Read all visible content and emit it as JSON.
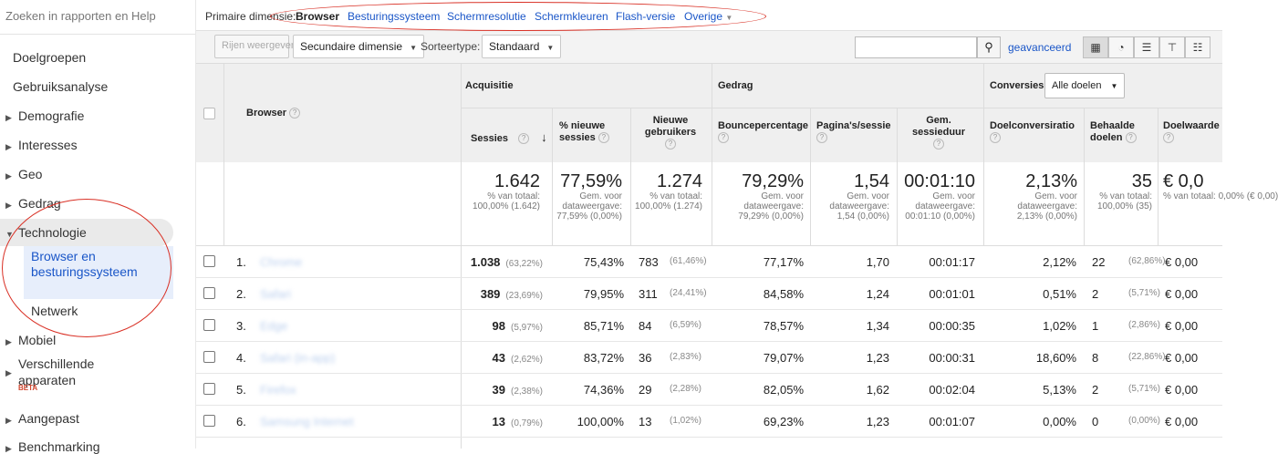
{
  "sidebar": {
    "search_placeholder": "Zoeken in rapporten en Help",
    "items": [
      {
        "label": "Doelgroepen"
      },
      {
        "label": "Gebruiksanalyse"
      },
      {
        "label": "Demografie"
      },
      {
        "label": "Interesses"
      },
      {
        "label": "Geo"
      },
      {
        "label": "Gedrag"
      },
      {
        "label": "Technologie"
      },
      {
        "label": "Browser en besturingssysteem"
      },
      {
        "label": "Netwerk"
      },
      {
        "label": "Mobiel"
      },
      {
        "label": "Verschillende apparaten"
      },
      {
        "label": "Aangepast"
      },
      {
        "label": "Benchmarking"
      }
    ],
    "beta": "BETA"
  },
  "dimbar": {
    "label": "Primaire dimensie:",
    "dims": [
      "Browser",
      "Besturingssysteem",
      "Schermresolutie",
      "Schermkleuren",
      "Flash-versie",
      "Overige"
    ]
  },
  "toolbar": {
    "rows_btn": "Rijen weergeven",
    "secondary_dim": "Secundaire dimensie",
    "sort_label": "Sorteertype:",
    "sort_value": "Standaard",
    "advanced": "geavanceerd"
  },
  "table": {
    "groups": {
      "acq": "Acquisitie",
      "beh": "Gedrag",
      "conv": "Conversies",
      "goals_select": "Alle doelen"
    },
    "cols": {
      "browser": "Browser",
      "sessions": "Sessies",
      "new_pct": "% nieuwe sessies",
      "new_users": "Nieuwe gebruikers",
      "bounce": "Bouncepercentage",
      "pages": "Pagina's/sessie",
      "duration": "Gem. sessieduur",
      "conv_rate": "Doelconversiratio",
      "goals": "Behaalde doelen",
      "value": "Doelwaarde"
    },
    "totals": [
      {
        "big": "1.642",
        "small": "% van totaal: 100,00% (1.642)"
      },
      {
        "big": "77,59%",
        "small": "Gem. voor dataweergave: 77,59% (0,00%)"
      },
      {
        "big": "1.274",
        "small": "% van totaal: 100,00% (1.274)"
      },
      {
        "big": "79,29%",
        "small": "Gem. voor dataweergave: 79,29% (0,00%)"
      },
      {
        "big": "1,54",
        "small": "Gem. voor dataweergave: 1,54 (0,00%)"
      },
      {
        "big": "00:01:10",
        "small": "Gem. voor dataweergave: 00:01:10 (0,00%)"
      },
      {
        "big": "2,13%",
        "small": "Gem. voor dataweergave: 2,13% (0,00%)"
      },
      {
        "big": "35",
        "small": "% van totaal: 100,00% (35)"
      },
      {
        "big": "€ 0,0",
        "small": "% van totaal: 0,00% (€ 0,00)"
      }
    ],
    "rows": [
      {
        "idx": "1.",
        "browser": "Chrome",
        "sess": "1.038",
        "sessp": "(63,22%)",
        "newp": "75,43%",
        "nu": "783",
        "nup": "(61,46%)",
        "bounce": "77,17%",
        "pages": "1,70",
        "dur": "00:01:17",
        "cr": "2,12%",
        "goals": "22",
        "goalsp": "(62,86%)",
        "val": "€ 0,00"
      },
      {
        "idx": "2.",
        "browser": "Safari",
        "sess": "389",
        "sessp": "(23,69%)",
        "newp": "79,95%",
        "nu": "311",
        "nup": "(24,41%)",
        "bounce": "84,58%",
        "pages": "1,24",
        "dur": "00:01:01",
        "cr": "0,51%",
        "goals": "2",
        "goalsp": "(5,71%)",
        "val": "€ 0,00"
      },
      {
        "idx": "3.",
        "browser": "Edge",
        "sess": "98",
        "sessp": "(5,97%)",
        "newp": "85,71%",
        "nu": "84",
        "nup": "(6,59%)",
        "bounce": "78,57%",
        "pages": "1,34",
        "dur": "00:00:35",
        "cr": "1,02%",
        "goals": "1",
        "goalsp": "(2,86%)",
        "val": "€ 0,00"
      },
      {
        "idx": "4.",
        "browser": "Safari (in-app)",
        "sess": "43",
        "sessp": "(2,62%)",
        "newp": "83,72%",
        "nu": "36",
        "nup": "(2,83%)",
        "bounce": "79,07%",
        "pages": "1,23",
        "dur": "00:00:31",
        "cr": "18,60%",
        "goals": "8",
        "goalsp": "(22,86%)",
        "val": "€ 0,00"
      },
      {
        "idx": "5.",
        "browser": "Firefox",
        "sess": "39",
        "sessp": "(2,38%)",
        "newp": "74,36%",
        "nu": "29",
        "nup": "(2,28%)",
        "bounce": "82,05%",
        "pages": "1,62",
        "dur": "00:02:04",
        "cr": "5,13%",
        "goals": "2",
        "goalsp": "(5,71%)",
        "val": "€ 0,00"
      },
      {
        "idx": "6.",
        "browser": "Samsung Internet",
        "sess": "13",
        "sessp": "(0,79%)",
        "newp": "100,00%",
        "nu": "13",
        "nup": "(1,02%)",
        "bounce": "69,23%",
        "pages": "1,23",
        "dur": "00:01:07",
        "cr": "0,00%",
        "goals": "0",
        "goalsp": "(0,00%)",
        "val": "€ 0,00"
      }
    ]
  }
}
